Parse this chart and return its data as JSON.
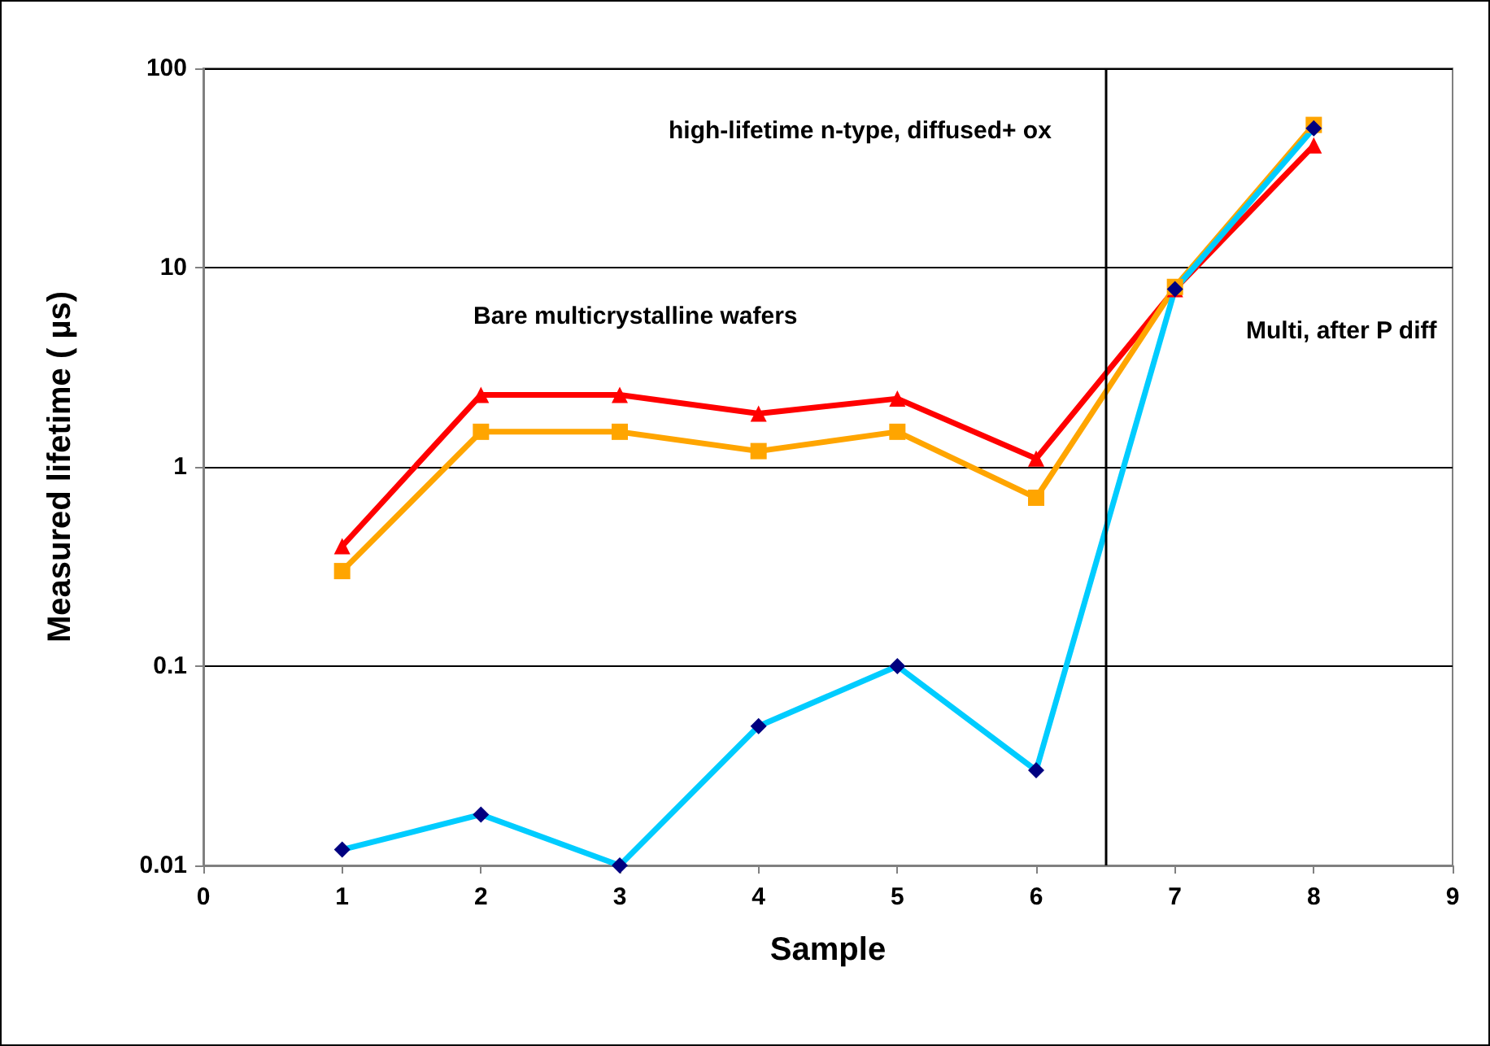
{
  "chart_data": {
    "type": "line",
    "xlabel": "Sample",
    "ylabel": "Measured lifetime ( µs)",
    "log": "y",
    "grid": "y",
    "x": [
      1,
      2,
      3,
      4,
      5,
      6,
      7,
      8
    ],
    "xlim": [
      0,
      9
    ],
    "xticks": [
      0,
      1,
      2,
      3,
      4,
      5,
      6,
      7,
      8,
      9
    ],
    "ylim": [
      0.01,
      100
    ],
    "yticks": [
      0.01,
      0.1,
      1,
      10,
      100
    ],
    "series": [
      {
        "color": "#ff0000",
        "marker": "triangle",
        "values": [
          0.4,
          2.3,
          2.3,
          1.85,
          2.2,
          1.1,
          7.8,
          41
        ]
      },
      {
        "color": "#ffa500",
        "marker": "square",
        "values": [
          0.3,
          1.5,
          1.5,
          1.2,
          1.5,
          0.7,
          8,
          52
        ]
      },
      {
        "color": "#00ccff",
        "colors": [
          "#000080",
          "#000080",
          "#000080",
          "#000080",
          "#000080",
          "#000080",
          "#000080",
          "#000080"
        ],
        "marker": "diamond",
        "values": [
          0.012,
          0.018,
          0.01,
          0.05,
          0.1,
          0.03,
          7.8,
          50
        ]
      }
    ],
    "ref_lines": [
      {
        "axis": "x",
        "value": 6.5,
        "color": "#000000"
      }
    ],
    "annotations": [
      "high-lifetime n-type, diffused+ ox",
      "Bare multicrystalline wafers",
      "Multi, after P diff"
    ]
  }
}
